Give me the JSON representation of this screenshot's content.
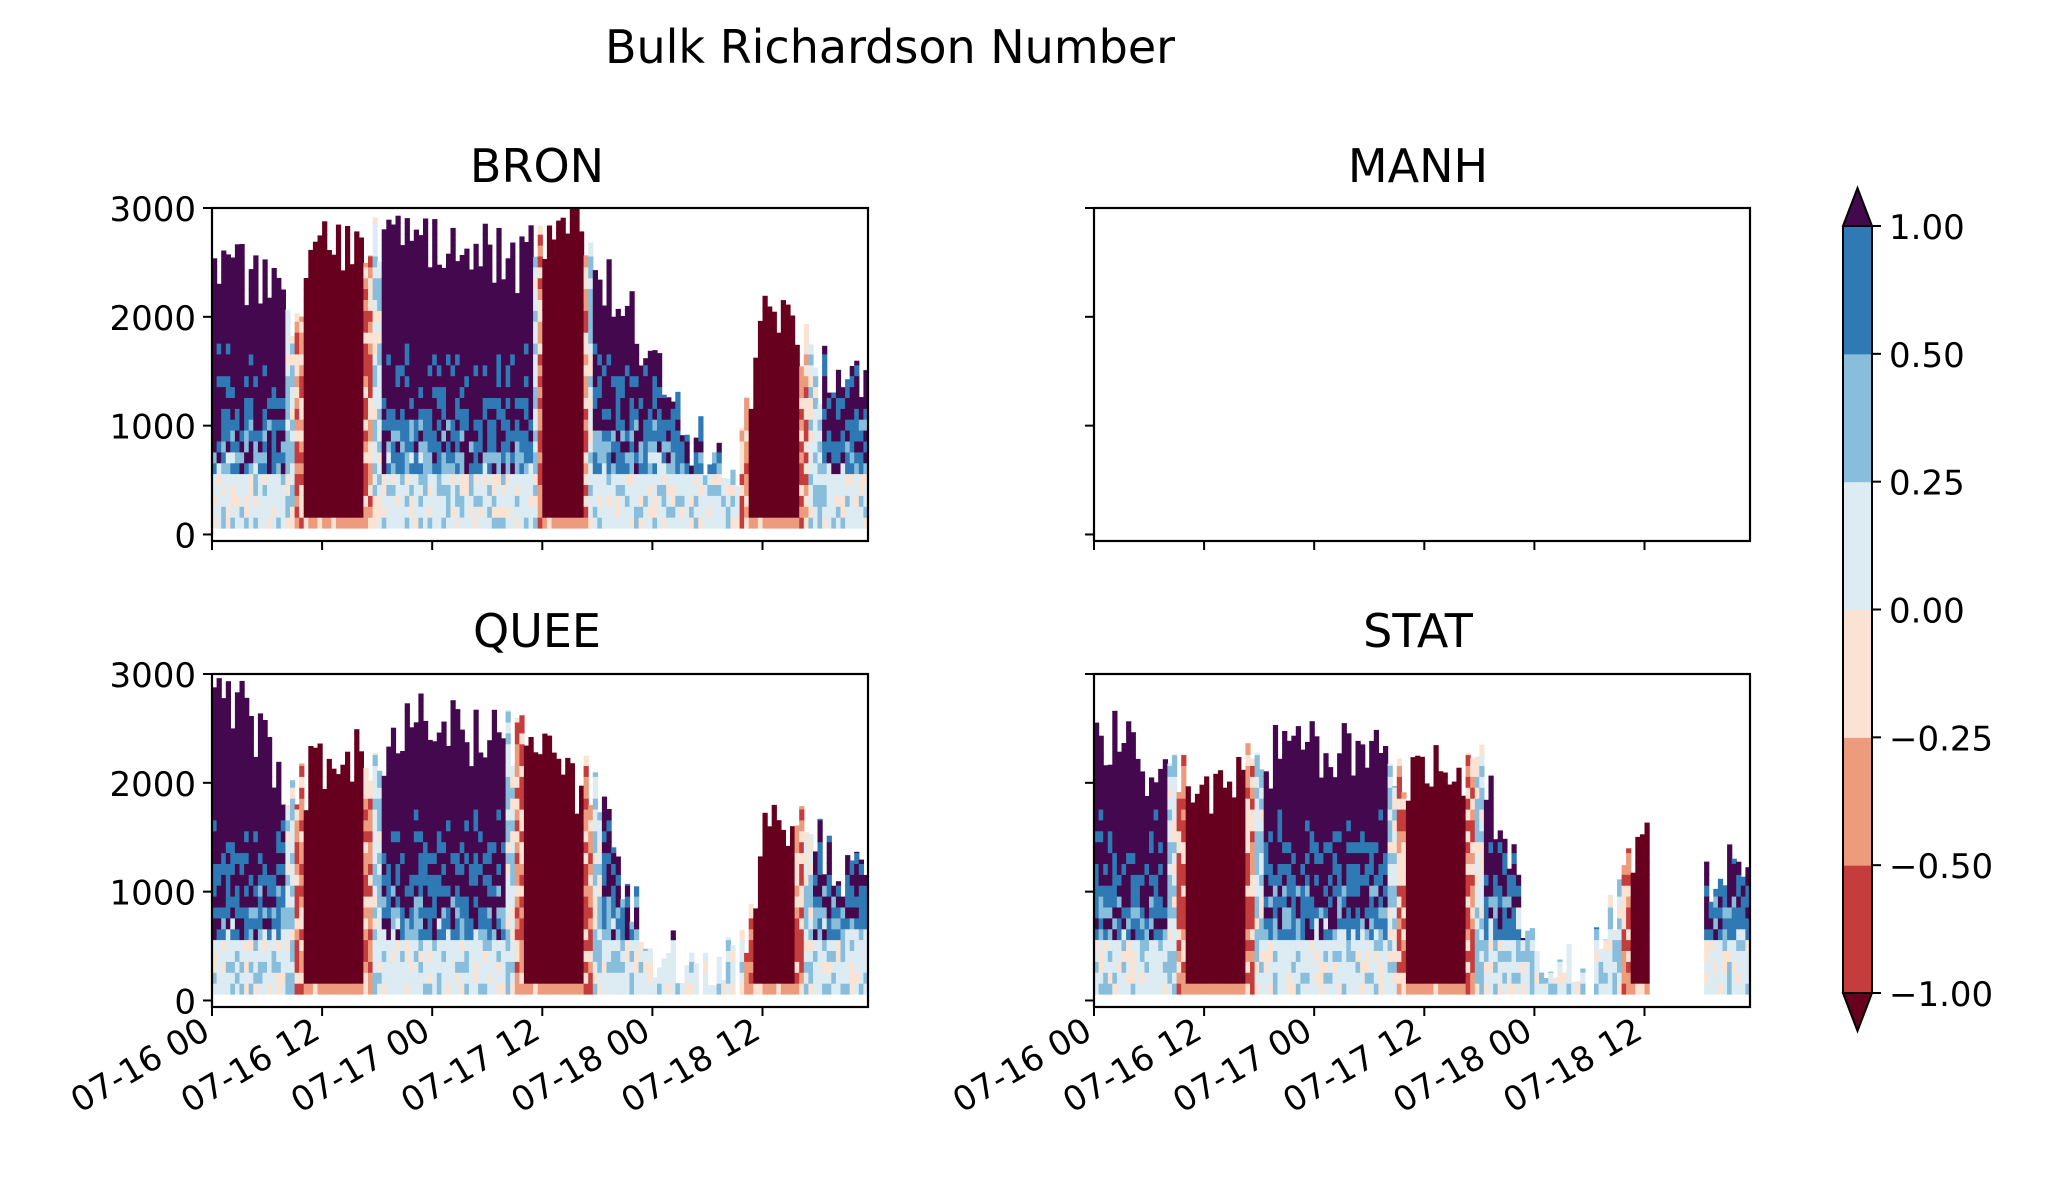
{
  "figure": {
    "title": "Bulk Richardson Number"
  },
  "chart_data": [
    {
      "type": "heatmap",
      "panel": "BRON",
      "title": "BRON",
      "has_data": true,
      "x_ticks": [
        "07-16 00",
        "07-16 12",
        "07-17 00",
        "07-17 12",
        "07-18 00",
        "07-18 12"
      ],
      "x_tick_labels_shown": false,
      "xlim": [
        "07-16 00",
        "07-18 23"
      ],
      "ylim": [
        0,
        3000
      ],
      "y_ticks": [
        0,
        1000,
        2000,
        3000
      ],
      "y_tick_labels": [
        "0",
        "1000",
        "2000",
        "3000"
      ],
      "approx_top_of_data_m": [
        [
          "07-16 00",
          2300
        ],
        [
          "07-16 03",
          2400
        ],
        [
          "07-16 06",
          2200
        ],
        [
          "07-16 09",
          2050
        ],
        [
          "07-16 12",
          2600
        ],
        [
          "07-16 15",
          2750
        ],
        [
          "07-16 18",
          2600
        ],
        [
          "07-16 21",
          2700
        ],
        [
          "07-17 00",
          2600
        ],
        [
          "07-17 03",
          2500
        ],
        [
          "07-17 06",
          2600
        ],
        [
          "07-17 09",
          2500
        ],
        [
          "07-17 12",
          2600
        ],
        [
          "07-17 15",
          2900
        ],
        [
          "07-17 18",
          2300
        ],
        [
          "07-17 21",
          2100
        ],
        [
          "07-18 00",
          1500
        ],
        [
          "07-18 03",
          1000
        ],
        [
          "07-18 06",
          700
        ],
        [
          "07-18 09",
          650
        ],
        [
          "07-18 12",
          2100
        ],
        [
          "07-18 15",
          1900
        ],
        [
          "07-18 18",
          1500
        ],
        [
          "07-18 21",
          1300
        ]
      ]
    },
    {
      "type": "heatmap",
      "panel": "MANH",
      "title": "MANH",
      "has_data": false,
      "x_ticks": [
        "07-16 00",
        "07-16 12",
        "07-17 00",
        "07-17 12",
        "07-18 00",
        "07-18 12"
      ],
      "x_tick_labels_shown": false,
      "ylim": [
        0,
        3000
      ],
      "y_ticks": [
        0,
        1000,
        2000,
        3000
      ],
      "y_tick_labels_shown": false
    },
    {
      "type": "heatmap",
      "panel": "QUEE",
      "title": "QUEE",
      "has_data": true,
      "x_ticks": [
        "07-16 00",
        "07-16 12",
        "07-17 00",
        "07-17 12",
        "07-18 00",
        "07-18 12"
      ],
      "x_tick_labels": [
        "07-16 00",
        "07-16 12",
        "07-17 00",
        "07-17 12",
        "07-18 00",
        "07-18 12"
      ],
      "xlim": [
        "07-16 00",
        "07-18 23"
      ],
      "ylim": [
        0,
        3000
      ],
      "y_ticks": [
        0,
        1000,
        2000,
        3000
      ],
      "y_tick_labels": [
        "0",
        "1000",
        "2000",
        "3000"
      ],
      "approx_top_of_data_m": [
        [
          "07-16 00",
          2700
        ],
        [
          "07-16 03",
          2700
        ],
        [
          "07-16 06",
          2200
        ],
        [
          "07-16 09",
          1900
        ],
        [
          "07-16 12",
          2200
        ],
        [
          "07-16 15",
          2300
        ],
        [
          "07-16 18",
          2300
        ],
        [
          "07-16 21",
          2500
        ],
        [
          "07-17 00",
          2600
        ],
        [
          "07-17 03",
          2400
        ],
        [
          "07-17 06",
          2500
        ],
        [
          "07-17 09",
          2400
        ],
        [
          "07-17 12",
          2300
        ],
        [
          "07-17 15",
          2000
        ],
        [
          "07-17 18",
          1900
        ],
        [
          "07-17 21",
          1000
        ],
        [
          "07-18 00",
          400
        ],
        [
          "07-18 03",
          400
        ],
        [
          "07-18 06",
          350
        ],
        [
          "07-18 09",
          300
        ],
        [
          "07-18 12",
          1500
        ],
        [
          "07-18 15",
          1500
        ],
        [
          "07-18 18",
          1500
        ],
        [
          "07-18 21",
          1100
        ]
      ]
    },
    {
      "type": "heatmap",
      "panel": "STAT",
      "title": "STAT",
      "has_data": true,
      "x_ticks": [
        "07-16 00",
        "07-16 12",
        "07-17 00",
        "07-17 12",
        "07-18 00",
        "07-18 12"
      ],
      "x_tick_labels": [
        "07-16 00",
        "07-16 12",
        "07-17 00",
        "07-17 12",
        "07-18 00",
        "07-18 12"
      ],
      "xlim": [
        "07-16 00",
        "07-18 23"
      ],
      "ylim": [
        0,
        3000
      ],
      "y_ticks": [
        0,
        1000,
        2000,
        3000
      ],
      "y_tick_labels_shown": false,
      "approx_top_of_data_m": [
        [
          "07-16 00",
          2500
        ],
        [
          "07-16 03",
          2300
        ],
        [
          "07-16 06",
          2100
        ],
        [
          "07-16 09",
          2000
        ],
        [
          "07-16 12",
          2000
        ],
        [
          "07-16 15",
          2000
        ],
        [
          "07-16 18",
          2200
        ],
        [
          "07-16 21",
          2300
        ],
        [
          "07-17 00",
          2300
        ],
        [
          "07-17 03",
          2300
        ],
        [
          "07-17 06",
          2300
        ],
        [
          "07-17 09",
          2000
        ],
        [
          "07-17 12",
          2200
        ],
        [
          "07-17 15",
          2000
        ],
        [
          "07-17 18",
          2100
        ],
        [
          "07-17 21",
          1400
        ],
        [
          "07-18 00",
          300
        ],
        [
          "07-18 03",
          300
        ],
        [
          "07-18 06",
          300
        ],
        [
          "07-18 09",
          1000
        ],
        [
          "07-18 12",
          1700
        ],
        [
          "07-18 15",
          null
        ],
        [
          "07-18 18",
          1200
        ],
        [
          "07-18 21",
          1200
        ]
      ]
    }
  ],
  "colorbar": {
    "levels": [
      -1.0,
      -0.5,
      -0.25,
      0.0,
      0.25,
      0.5,
      1.0
    ],
    "tick_labels": [
      "1.00",
      "0.50",
      "0.25",
      "0.00",
      "−0.25",
      "−0.50",
      "−1.00"
    ],
    "extend": "both",
    "colors": {
      "under": "#67001f",
      "bin_m1_m05": "#c43c3c",
      "bin_m05_m025": "#ec9c7c",
      "bin_m025_0": "#fbe3d4",
      "bin_0_025": "#ddebf2",
      "bin_025_05": "#88bedc",
      "bin_05_1": "#2f79b5",
      "over": "#44084f"
    }
  }
}
